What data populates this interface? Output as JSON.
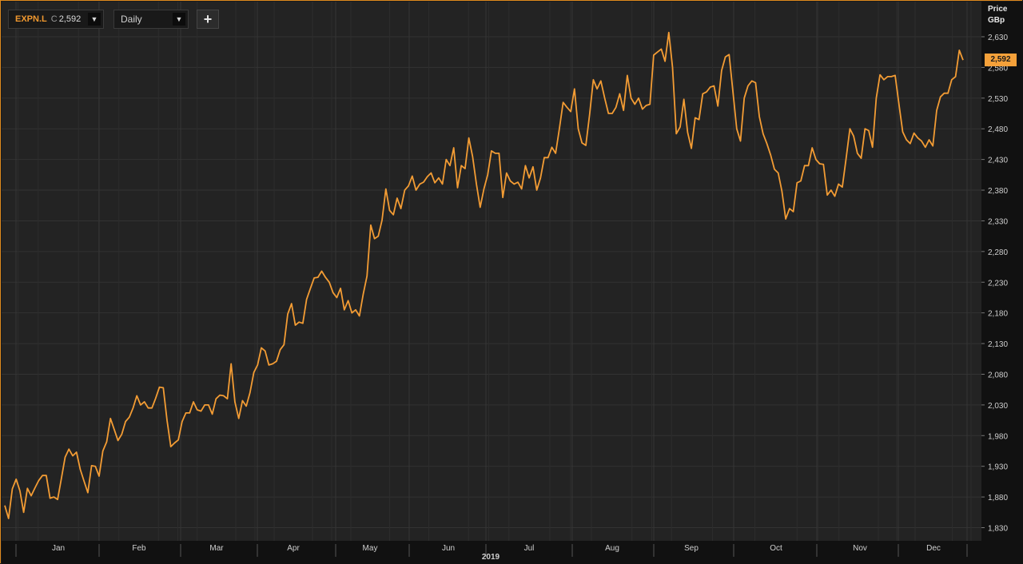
{
  "toolbar": {
    "ticker": "EXPN.L",
    "close_prefix": "C",
    "close_value": "2,592",
    "interval": "Daily",
    "dropdown_icon": "chevron-down-icon",
    "add_icon": "plus-icon",
    "add_label": "+"
  },
  "axis": {
    "title_line1": "Price",
    "title_line2": "GBp",
    "last_price": "2,592"
  },
  "colors": {
    "line": "#f39c34",
    "accent": "#e08a1e",
    "background": "#232323"
  },
  "chart_data": {
    "type": "line",
    "title": "",
    "xlabel": "2019",
    "ylabel": "Price GBp",
    "ylim": [
      1815,
      2650
    ],
    "yticks": [
      1830,
      1880,
      1930,
      1980,
      2030,
      2080,
      2130,
      2180,
      2230,
      2280,
      2330,
      2380,
      2430,
      2480,
      2530,
      2580,
      2630
    ],
    "ytick_labels": [
      "1,830",
      "1,880",
      "1,930",
      "1,980",
      "2,030",
      "2,080",
      "2,130",
      "2,180",
      "2,230",
      "2,280",
      "2,330",
      "2,380",
      "2,430",
      "2,480",
      "2,530",
      "2,580",
      "2,630"
    ],
    "xticks": [
      "Jan",
      "Feb",
      "Mar",
      "Apr",
      "May",
      "Jun",
      "Jul",
      "Aug",
      "Sep",
      "Oct",
      "Nov",
      "Dec"
    ],
    "year_label": "2019",
    "grid": true,
    "series": [
      {
        "values": [
          1866,
          1845,
          1893,
          1909,
          1890,
          1855,
          1894,
          1882,
          1895,
          1907,
          1915,
          1915,
          1878,
          1880,
          1876,
          1910,
          1945,
          1958,
          1947,
          1953,
          1925,
          1906,
          1887,
          1931,
          1930,
          1914,
          1955,
          1970,
          2008,
          1990,
          1972,
          1982,
          2003,
          2010,
          2025,
          2045,
          2030,
          2035,
          2025,
          2025,
          2041,
          2059,
          2058,
          2005,
          1962,
          1968,
          1973,
          2003,
          2017,
          2017,
          2035,
          2022,
          2020,
          2030,
          2030,
          2015,
          2040,
          2046,
          2045,
          2040,
          2097,
          2035,
          2008,
          2037,
          2028,
          2050,
          2083,
          2095,
          2123,
          2118,
          2095,
          2097,
          2101,
          2120,
          2128,
          2178,
          2195,
          2160,
          2165,
          2163,
          2202,
          2220,
          2237,
          2238,
          2248,
          2238,
          2230,
          2213,
          2205,
          2220,
          2185,
          2200,
          2180,
          2185,
          2175,
          2210,
          2240,
          2323,
          2301,
          2305,
          2331,
          2382,
          2347,
          2340,
          2367,
          2350,
          2380,
          2387,
          2403,
          2380,
          2390,
          2393,
          2402,
          2408,
          2392,
          2400,
          2390,
          2430,
          2420,
          2449,
          2384,
          2420,
          2415,
          2465,
          2435,
          2390,
          2352,
          2382,
          2405,
          2444,
          2440,
          2440,
          2368,
          2408,
          2395,
          2390,
          2393,
          2382,
          2420,
          2400,
          2418,
          2380,
          2400,
          2433,
          2433,
          2450,
          2440,
          2480,
          2523,
          2515,
          2508,
          2545,
          2480,
          2457,
          2453,
          2503,
          2560,
          2545,
          2558,
          2530,
          2505,
          2505,
          2515,
          2537,
          2510,
          2567,
          2530,
          2520,
          2530,
          2512,
          2518,
          2520,
          2600,
          2605,
          2610,
          2590,
          2637,
          2580,
          2472,
          2483,
          2528,
          2474,
          2448,
          2498,
          2495,
          2537,
          2540,
          2548,
          2550,
          2517,
          2575,
          2597,
          2601,
          2540,
          2480,
          2460,
          2530,
          2550,
          2558,
          2555,
          2500,
          2472,
          2456,
          2437,
          2414,
          2408,
          2378,
          2333,
          2350,
          2345,
          2392,
          2395,
          2420,
          2420,
          2449,
          2430,
          2423,
          2422,
          2372,
          2380,
          2370,
          2390,
          2385,
          2432,
          2480,
          2468,
          2440,
          2432,
          2480,
          2477,
          2450,
          2530,
          2568,
          2560,
          2565,
          2565,
          2567,
          2520,
          2475,
          2462,
          2456,
          2473,
          2465,
          2460,
          2450,
          2462,
          2452,
          2510,
          2532,
          2538,
          2538,
          2560,
          2565,
          2608,
          2592
        ]
      }
    ]
  }
}
